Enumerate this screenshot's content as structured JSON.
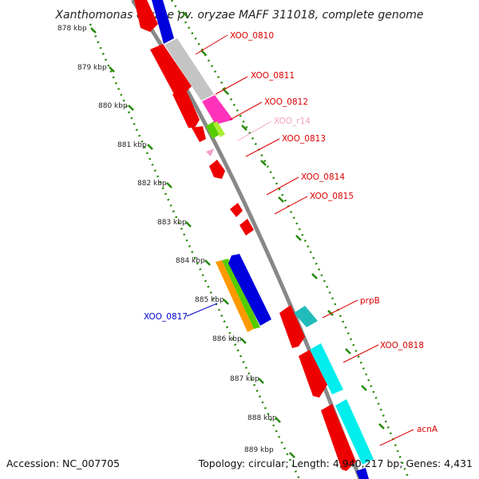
{
  "title": "Xanthomonas oryzae pv. oryzae MAFF 311018, complete genome",
  "accession": "Accession: NC_007705",
  "topology": "Topology: circular; Length: 4,940,217 bp; Genes: 4,431",
  "ticks": [
    "878 kbp",
    "879 kbp",
    "880 kbp",
    "881 kbp",
    "882 kbp",
    "883 kbp",
    "884 kbp",
    "885 kbp",
    "886 kbp",
    "887 kbp",
    "888 kbp",
    "889 kbp"
  ],
  "gene_labels": [
    {
      "text": "XOO_0810",
      "color": "#dd0000"
    },
    {
      "text": "XOO_0811",
      "color": "#dd0000"
    },
    {
      "text": "XOO_0812",
      "color": "#dd0000"
    },
    {
      "text": "XOO_r14",
      "color": "#f4a0c8"
    },
    {
      "text": "XOO_0813",
      "color": "#dd0000"
    },
    {
      "text": "XOO_0814",
      "color": "#dd0000"
    },
    {
      "text": "XOO_0815",
      "color": "#dd0000"
    },
    {
      "text": "XOO_0817",
      "color": "#0000cc"
    },
    {
      "text": "prpB",
      "color": "#dd0000"
    },
    {
      "text": "XOO_0818",
      "color": "#dd0000"
    },
    {
      "text": "acnA",
      "color": "#dd0000"
    }
  ],
  "colors": {
    "red": "#ee0000",
    "blue": "#0000dd",
    "gray": "#c4c4c4",
    "magenta": "#ff33bb",
    "green": "#55cc00",
    "lime": "#aaee33",
    "orange": "#ff9900",
    "cyan": "#00eeee",
    "teal": "#22bbbb",
    "pink": "#f4a0c8",
    "backbone": "#888888",
    "tick": "#228800"
  }
}
